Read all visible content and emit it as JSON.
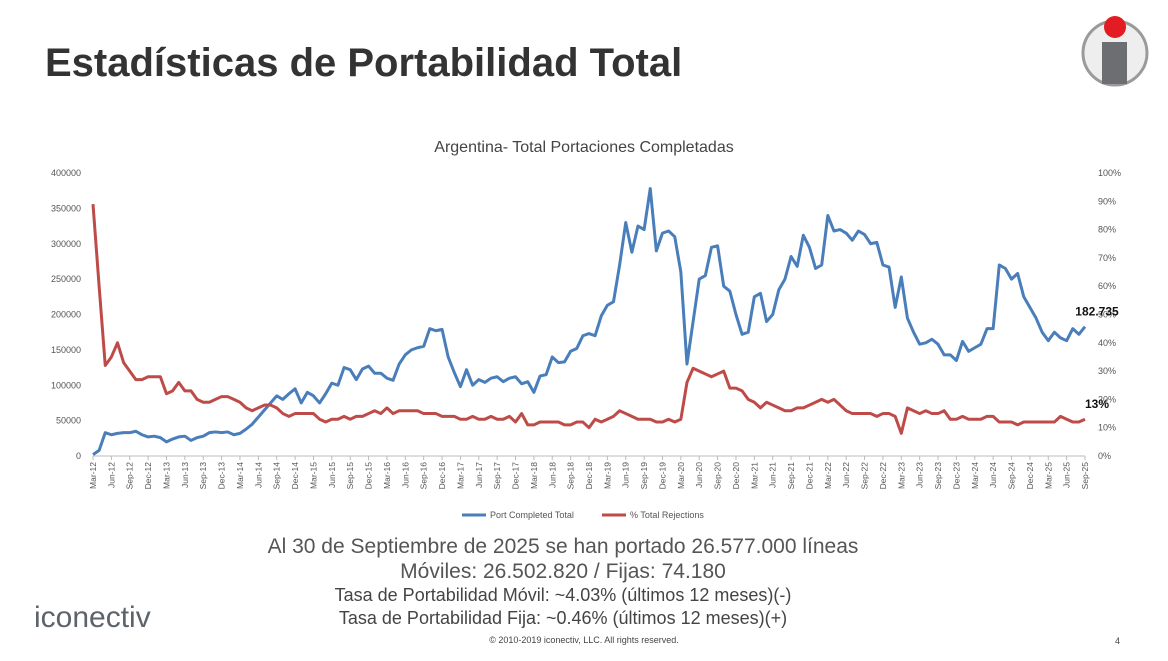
{
  "slide": {
    "title": "Estadísticas de Portabilidad Total",
    "summary": [
      "Al 30 de Septiembre de 2025 se han portado 26.577.000 líneas",
      "Móviles: 26.502.820 / Fijas: 74.180",
      "Tasa de Portabilidad Móvil: ~4.03% (últimos 12 meses)(-)",
      "Tasa de Portabilidad Fija: ~0.46% (últimos 12 meses)(+)"
    ],
    "brand": "iconectiv",
    "copyright": "© 2010-2019 iconectiv, LLC. All rights reserved.",
    "page_number": "4"
  },
  "chart_data": {
    "type": "line",
    "title": "Argentina- Total Portaciones Completadas",
    "categories": [
      "Mar-12",
      null,
      null,
      "Jun-12",
      null,
      null,
      "Sep-12",
      null,
      null,
      "Dec-12",
      null,
      null,
      "Mar-13",
      null,
      null,
      "Jun-13",
      null,
      null,
      "Sep-13",
      null,
      null,
      "Dec-13",
      null,
      null,
      "Mar-14",
      null,
      null,
      "Jun-14",
      null,
      null,
      "Sep-14",
      null,
      null,
      "Dec-14",
      null,
      null,
      "Mar-15",
      null,
      null,
      "Jun-15",
      null,
      null,
      "Sep-15",
      null,
      null,
      "Dec-15",
      null,
      null,
      "Mar-16",
      null,
      null,
      "Jun-16",
      null,
      null,
      "Sep-16",
      null,
      null,
      "Dec-16",
      null,
      null,
      "Mar-17",
      null,
      null,
      "Jun-17",
      null,
      null,
      "Sep-17",
      null,
      null,
      "Dec-17",
      null,
      null,
      "Mar-18",
      null,
      null,
      "Jun-18",
      null,
      null,
      "Sep-18",
      null,
      null,
      "Dec-18",
      null,
      null,
      "Mar-19",
      null,
      null,
      "Jun-19",
      null,
      null,
      "Sep-19",
      null,
      null,
      "Dec-19",
      null,
      null,
      "Mar-20",
      null,
      null,
      "Jun-20",
      null,
      null,
      "Sep-20",
      null,
      null,
      "Dec-20",
      null,
      null,
      "Mar-21",
      null,
      null,
      "Jun-21",
      null,
      null,
      "Sep-21",
      null,
      null,
      "Dec-21",
      null,
      null,
      "Mar-22",
      null,
      null,
      "Jun-22",
      null,
      null,
      "Sep-22",
      null,
      null,
      "Dec-22",
      null,
      null,
      "Mar-23",
      null,
      null,
      "Jun-23",
      null,
      null,
      "Sep-23",
      null,
      null,
      "Dec-23",
      null,
      null,
      "Mar-24",
      null,
      null,
      "Jun-24",
      null,
      null,
      "Sep-24",
      null,
      null,
      "Dec-24",
      null,
      null,
      "Mar-25",
      null,
      null,
      "Jun-25",
      null,
      null,
      "Sep-25"
    ],
    "series": [
      {
        "name": "Port Completed Total",
        "color": "#4a7ebb",
        "values": [
          2000,
          8000,
          33000,
          30000,
          32000,
          33000,
          33000,
          35000,
          30000,
          27000,
          28000,
          26000,
          20000,
          24000,
          27000,
          28000,
          22000,
          26000,
          28000,
          33000,
          34000,
          33000,
          34000,
          30000,
          32000,
          38000,
          45000,
          55000,
          65000,
          75000,
          85000,
          80000,
          88000,
          95000,
          75000,
          90000,
          85000,
          75000,
          88000,
          103000,
          100000,
          125000,
          122000,
          108000,
          123000,
          127000,
          117000,
          117000,
          110000,
          107000,
          130000,
          143000,
          150000,
          153000,
          155000,
          180000,
          177000,
          179000,
          140000,
          118000,
          98000,
          122000,
          100000,
          108000,
          104000,
          110000,
          112000,
          105000,
          110000,
          112000,
          102000,
          105000,
          90000,
          113000,
          115000,
          140000,
          132000,
          133000,
          148000,
          152000,
          170000,
          173000,
          170000,
          198000,
          213000,
          218000,
          270000,
          330000,
          288000,
          325000,
          320000,
          378000,
          290000,
          315000,
          318000,
          310000,
          260000,
          130000,
          190000,
          250000,
          255000,
          295000,
          297000,
          240000,
          233000,
          200000,
          172000,
          175000,
          225000,
          230000,
          190000,
          200000,
          235000,
          250000,
          282000,
          268000,
          312000,
          295000,
          265000,
          270000,
          340000,
          318000,
          320000,
          315000,
          305000,
          318000,
          313000,
          300000,
          302000,
          270000,
          267000,
          210000,
          253000,
          195000,
          175000,
          158000,
          160000,
          165000,
          158000,
          143000,
          143000,
          135000,
          162000,
          148000,
          153000,
          158000,
          180000,
          180000,
          270000,
          265000,
          250000,
          258000,
          225000,
          210000,
          195000,
          175000,
          163000,
          175000,
          167000,
          163000,
          180000,
          172000,
          182735
        ],
        "value_labels": [
          null,
          null,
          null,
          null,
          null,
          null,
          null,
          null,
          null,
          null,
          null,
          null,
          null,
          null,
          null,
          null,
          null,
          null,
          null,
          null,
          null,
          null,
          null,
          null,
          null,
          null,
          null,
          null,
          null,
          null,
          null,
          null,
          null,
          null,
          null,
          null,
          null,
          null,
          null,
          null,
          null,
          null,
          null,
          null,
          null,
          null,
          null,
          null,
          null,
          null,
          null,
          null,
          null,
          null,
          null,
          null,
          null,
          null,
          null,
          null,
          null,
          null,
          null,
          null,
          null,
          null,
          null,
          null,
          null,
          null,
          null,
          null,
          null,
          null,
          null,
          null,
          null,
          null,
          null,
          null,
          null,
          null,
          null,
          null,
          null,
          null,
          null,
          null,
          null,
          null,
          null,
          null,
          null,
          null,
          null,
          null,
          null,
          null,
          null,
          null,
          null,
          null,
          null,
          null,
          null,
          null,
          null,
          null,
          null,
          null,
          null,
          null,
          null,
          null,
          null,
          null,
          null,
          null,
          null,
          null,
          null,
          null,
          null,
          null,
          null,
          null,
          null,
          null,
          null,
          null,
          null,
          null,
          null,
          null,
          null,
          null,
          null,
          null,
          null,
          null,
          null,
          null,
          null,
          null,
          null,
          null,
          null,
          null,
          null,
          null,
          null,
          null,
          null,
          null,
          null,
          null,
          null,
          null,
          null,
          null,
          null,
          null,
          "182.735"
        ]
      },
      {
        "name": "% Total Rejections",
        "color": "#be4b48",
        "axis": "y2",
        "values": [
          89,
          60,
          32,
          35,
          40,
          33,
          30,
          27,
          27,
          28,
          28,
          28,
          22,
          23,
          26,
          23,
          23,
          20,
          19,
          19,
          20,
          21,
          21,
          20,
          19,
          17,
          16,
          17,
          18,
          18,
          17,
          15,
          14,
          15,
          15,
          15,
          15,
          13,
          12,
          13,
          13,
          14,
          13,
          14,
          14,
          15,
          16,
          15,
          17,
          15,
          16,
          16,
          16,
          16,
          15,
          15,
          15,
          14,
          14,
          14,
          13,
          13,
          14,
          13,
          13,
          14,
          13,
          13,
          14,
          12,
          15,
          11,
          11,
          12,
          12,
          12,
          12,
          11,
          11,
          12,
          12,
          10,
          13,
          12,
          13,
          14,
          16,
          15,
          14,
          13,
          13,
          13,
          12,
          12,
          13,
          12,
          13,
          26,
          31,
          30,
          29,
          28,
          29,
          30,
          24,
          24,
          23,
          20,
          19,
          17,
          19,
          18,
          17,
          16,
          16,
          17,
          17,
          18,
          19,
          20,
          19,
          20,
          18,
          16,
          15,
          15,
          15,
          15,
          14,
          15,
          15,
          14,
          8,
          17,
          16,
          15,
          16,
          15,
          15,
          16,
          13,
          13,
          14,
          13,
          13,
          13,
          14,
          14,
          12,
          12,
          12,
          11,
          12,
          12,
          12,
          12,
          12,
          12,
          14,
          13,
          12,
          12,
          13
        ],
        "value_labels": [
          null,
          null,
          null,
          null,
          null,
          null,
          null,
          null,
          null,
          null,
          null,
          null,
          null,
          null,
          null,
          null,
          null,
          null,
          null,
          null,
          null,
          null,
          null,
          null,
          null,
          null,
          null,
          null,
          null,
          null,
          null,
          null,
          null,
          null,
          null,
          null,
          null,
          null,
          null,
          null,
          null,
          null,
          null,
          null,
          null,
          null,
          null,
          null,
          null,
          null,
          null,
          null,
          null,
          null,
          null,
          null,
          null,
          null,
          null,
          null,
          null,
          null,
          null,
          null,
          null,
          null,
          null,
          null,
          null,
          null,
          null,
          null,
          null,
          null,
          null,
          null,
          null,
          null,
          null,
          null,
          null,
          null,
          null,
          null,
          null,
          null,
          null,
          null,
          null,
          null,
          null,
          null,
          null,
          null,
          null,
          null,
          null,
          null,
          null,
          null,
          null,
          null,
          null,
          null,
          null,
          null,
          null,
          null,
          null,
          null,
          null,
          null,
          null,
          null,
          null,
          null,
          null,
          null,
          null,
          null,
          null,
          null,
          null,
          null,
          null,
          null,
          null,
          null,
          null,
          null,
          null,
          null,
          null,
          null,
          null,
          null,
          null,
          null,
          null,
          null,
          null,
          null,
          null,
          null,
          null,
          null,
          null,
          null,
          null,
          null,
          null,
          null,
          null,
          null,
          null,
          null,
          null,
          null,
          null,
          null,
          null,
          null,
          "13%"
        ]
      }
    ],
    "ylim": [
      0,
      400000
    ],
    "yticks": [
      0,
      50000,
      100000,
      150000,
      200000,
      250000,
      300000,
      350000,
      400000
    ],
    "y2lim": [
      0,
      100
    ],
    "y2ticks": [
      {
        "value": 0,
        "label": "0%"
      },
      {
        "value": 10,
        "label": "10%"
      },
      {
        "value": 20,
        "label": "20%"
      },
      {
        "value": 30,
        "label": "30%"
      },
      {
        "value": 40,
        "label": "40%"
      },
      {
        "value": 50,
        "label": "50%"
      },
      {
        "value": 60,
        "label": "60%"
      },
      {
        "value": 70,
        "label": "70%"
      },
      {
        "value": 80,
        "label": "80%"
      },
      {
        "value": 90,
        "label": "90%"
      },
      {
        "value": 100,
        "label": "100%"
      }
    ],
    "grid": false,
    "legend": "bottom"
  }
}
